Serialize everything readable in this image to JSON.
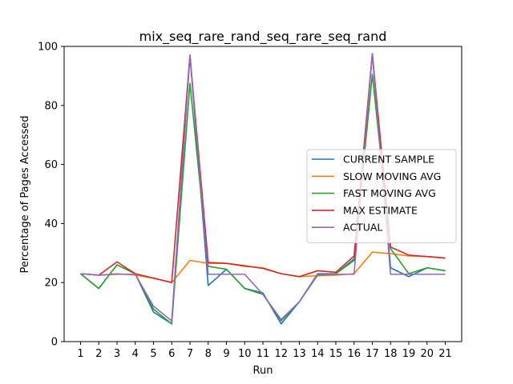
{
  "chart_data": {
    "type": "line",
    "title": "mix_seq_rare_rand_seq_rare_seq_rand",
    "xlabel": "Run",
    "ylabel": "Percentage of Pages Accessed",
    "x": [
      1,
      2,
      3,
      4,
      5,
      6,
      7,
      8,
      9,
      10,
      11,
      12,
      13,
      14,
      15,
      16,
      17,
      18,
      19,
      20,
      21
    ],
    "xlim": [
      0.1,
      21.9
    ],
    "ylim": [
      0,
      100
    ],
    "yticks": [
      0,
      20,
      40,
      60,
      80,
      100
    ],
    "grid": false,
    "legend_position": "center-right",
    "series": [
      {
        "name": "CURRENT SAMPLE",
        "color": "#1f77b4",
        "values": [
          23,
          18,
          26,
          23,
          10,
          6,
          97,
          19,
          24.5,
          18,
          16.5,
          6,
          13.5,
          23,
          23,
          28,
          97.5,
          25,
          22,
          25,
          24
        ]
      },
      {
        "name": "SLOW MOVING AVG",
        "color": "#ff7f0e",
        "values": [
          23,
          22.5,
          23,
          22.5,
          21.5,
          20,
          27.5,
          26.5,
          26.5,
          25.5,
          25,
          23,
          22,
          22.3,
          22.5,
          23,
          30.3,
          29.8,
          29,
          28.8,
          28.3
        ]
      },
      {
        "name": "FAST MOVING AVG",
        "color": "#2ca02c",
        "values": [
          23,
          18,
          26,
          23,
          11,
          6,
          87.5,
          25.5,
          24.5,
          18,
          16,
          7,
          13.5,
          22.5,
          23,
          27.5,
          90.5,
          31.5,
          23,
          25,
          24
        ]
      },
      {
        "name": "MAX ESTIMATE",
        "color": "#d62728",
        "values": [
          23,
          22.5,
          27,
          23,
          21.5,
          20,
          97,
          26.8,
          26.5,
          25.7,
          24.8,
          23,
          22,
          24,
          23.5,
          29,
          97.5,
          32,
          29.3,
          28.8,
          28.3
        ]
      },
      {
        "name": "ACTUAL",
        "color": "#9467bd",
        "values": [
          23,
          22.5,
          22.8,
          22.8,
          12,
          7,
          97,
          22.8,
          22.8,
          22.8,
          16,
          7.5,
          13.5,
          22.8,
          22.8,
          22.8,
          97.5,
          22.8,
          22.8,
          22.8,
          22.8
        ]
      }
    ]
  }
}
